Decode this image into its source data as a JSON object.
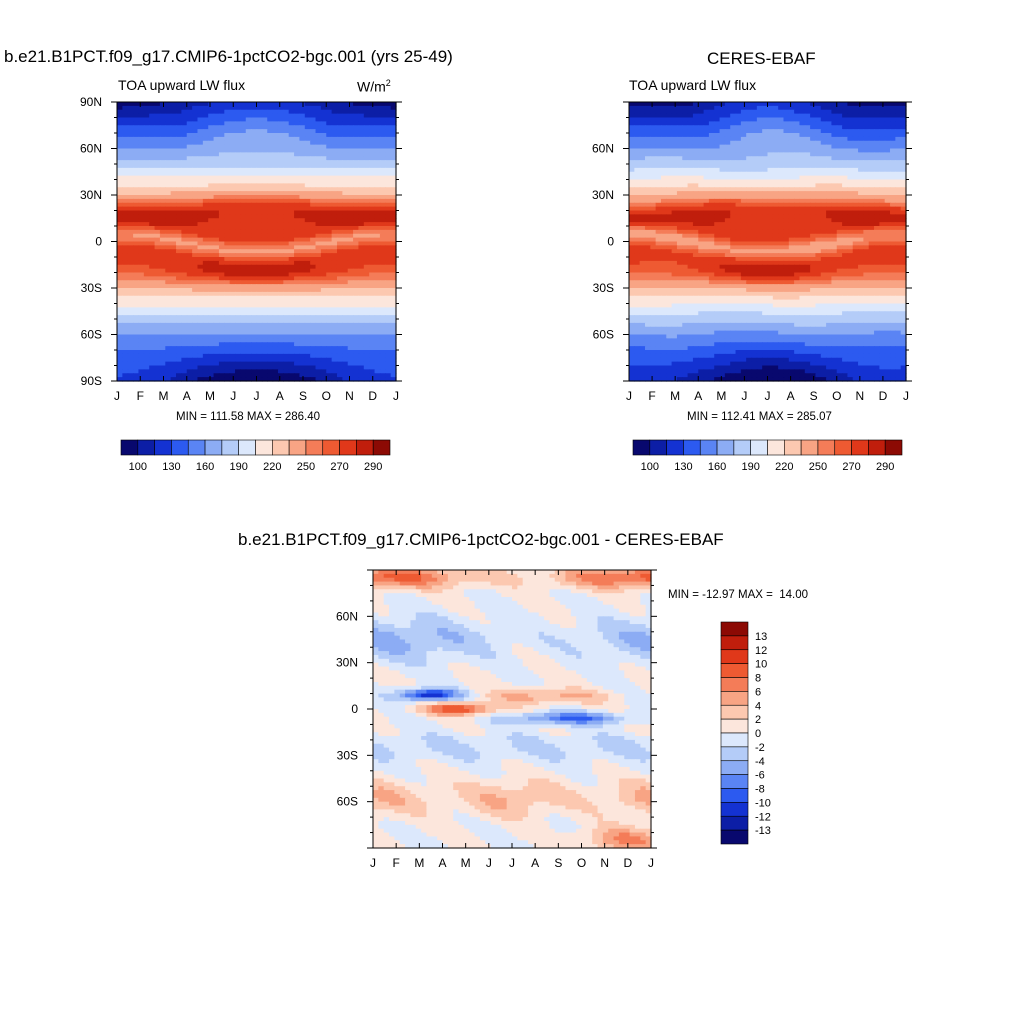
{
  "panels": [
    {
      "title": "b.e21.B1PCT.f09_g17.CMIP6-1pctCO2-bgc.001 (yrs 25-49)",
      "subtitle": "TOA upward LW flux",
      "units": "W/m",
      "units_sup": "2",
      "minmax": "MIN = 111.58 MAX = 286.40"
    },
    {
      "title": "CERES-EBAF",
      "subtitle": "TOA upward LW flux",
      "minmax": "MIN = 112.41 MAX = 285.07"
    },
    {
      "title": "b.e21.B1PCT.f09_g17.CMIP6-1pctCO2-bgc.001 - CERES-EBAF",
      "minmax": "MIN = -12.97 MAX =  14.00"
    }
  ],
  "axes": {
    "months": [
      "J",
      "F",
      "M",
      "A",
      "M",
      "J",
      "J",
      "A",
      "S",
      "O",
      "N",
      "D",
      "J"
    ],
    "lat_labels_full": [
      "90N",
      "60N",
      "30N",
      "0",
      "30S",
      "60S",
      "90S"
    ],
    "lat_labels_short": [
      "60N",
      "30N",
      "0",
      "30S",
      "60S"
    ]
  },
  "colorbars": {
    "absolute": {
      "colors": [
        "#08086e",
        "#0c1ea6",
        "#1432d2",
        "#2c5af0",
        "#5a84f4",
        "#8cacf4",
        "#b4ccf8",
        "#dce8fc",
        "#fce6dc",
        "#fcc8b0",
        "#f8a484",
        "#f47c58",
        "#ee5a32",
        "#e0381a",
        "#c01e0c",
        "#8c0a04"
      ],
      "labels": [
        "100",
        "130",
        "160",
        "190",
        "220",
        "250",
        "270",
        "290"
      ]
    },
    "difference": {
      "colors": [
        "#8c0a04",
        "#c01e0c",
        "#e0381a",
        "#ee5a32",
        "#f47c58",
        "#f8a484",
        "#fcc8b0",
        "#fce6dc",
        "#dce8fc",
        "#b4ccf8",
        "#8cacf4",
        "#5a84f4",
        "#2c5af0",
        "#1432d2",
        "#0c1ea6",
        "#08086e"
      ],
      "labels": [
        "13",
        "12",
        "10",
        "8",
        "6",
        "4",
        "2",
        "0",
        "-2",
        "-4",
        "-6",
        "-8",
        "-10",
        "-12",
        "-13"
      ]
    }
  },
  "chart_data": [
    {
      "type": "heatmap",
      "title": "b.e21.B1PCT.f09_g17.CMIP6-1pctCO2-bgc.001 (yrs 25-49)",
      "subtitle": "TOA upward LW flux",
      "units": "W/m2",
      "x": [
        "J",
        "F",
        "M",
        "A",
        "M",
        "J",
        "J",
        "A",
        "S",
        "O",
        "N",
        "D",
        "J"
      ],
      "y_range": [
        -90,
        90
      ],
      "min": 111.58,
      "max": 286.4,
      "levels": [
        100,
        115,
        130,
        145,
        160,
        175,
        190,
        205,
        220,
        235,
        250,
        260,
        270,
        280,
        290
      ]
    },
    {
      "type": "heatmap",
      "title": "CERES-EBAF",
      "subtitle": "TOA upward LW flux",
      "x": [
        "J",
        "F",
        "M",
        "A",
        "M",
        "J",
        "J",
        "A",
        "S",
        "O",
        "N",
        "D",
        "J"
      ],
      "y_range": [
        -90,
        90
      ],
      "min": 112.41,
      "max": 285.07,
      "levels": [
        100,
        115,
        130,
        145,
        160,
        175,
        190,
        205,
        220,
        235,
        250,
        260,
        270,
        280,
        290
      ]
    },
    {
      "type": "heatmap",
      "title": "b.e21.B1PCT.f09_g17.CMIP6-1pctCO2-bgc.001 - CERES-EBAF",
      "x": [
        "J",
        "F",
        "M",
        "A",
        "M",
        "J",
        "J",
        "A",
        "S",
        "O",
        "N",
        "D",
        "J"
      ],
      "y_range": [
        -90,
        90
      ],
      "min": -12.97,
      "max": 14.0,
      "levels": [
        -13,
        -12,
        -10,
        -8,
        -6,
        -4,
        -2,
        0,
        2,
        4,
        6,
        8,
        10,
        12,
        13
      ]
    }
  ]
}
